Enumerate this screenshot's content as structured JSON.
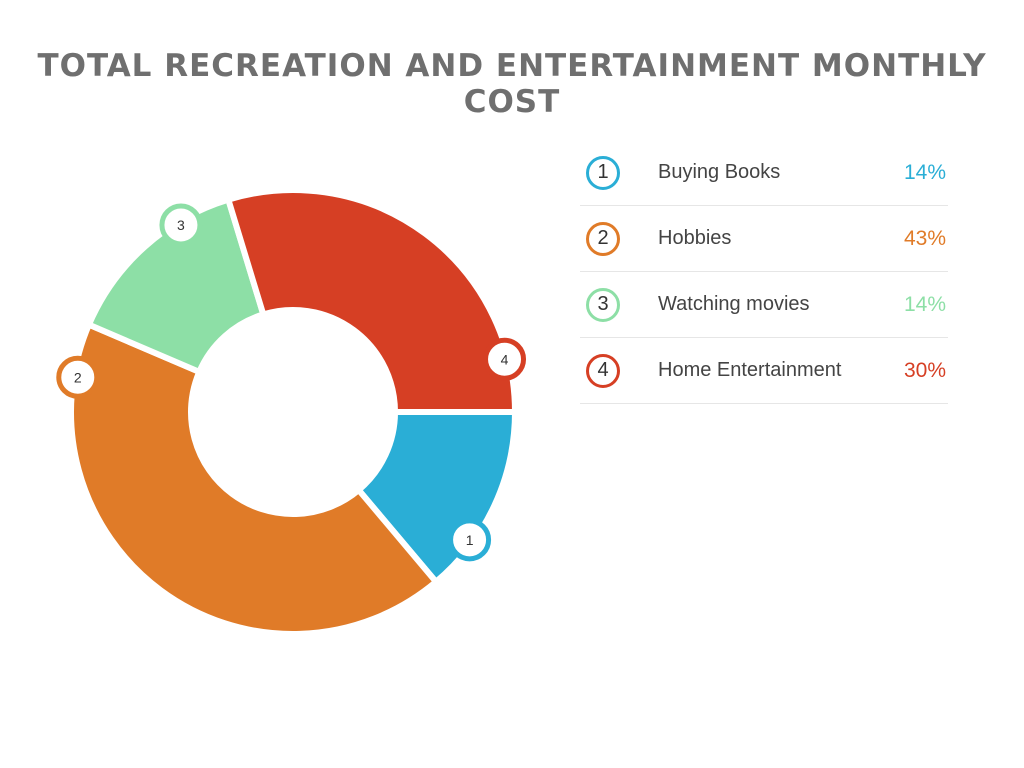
{
  "page": {
    "title": "Total Recreation and Entertainment Monthly Cost"
  },
  "chart_data": {
    "type": "pie",
    "variant": "donut",
    "title": "Total Recreation and Entertainment Monthly Cost",
    "categories": [
      "Buying Books",
      "Hobbies",
      "Watching movies",
      "Home Entertainment"
    ],
    "markers": [
      "1",
      "2",
      "3",
      "4"
    ],
    "values": [
      14,
      43,
      14,
      30
    ],
    "value_labels": [
      "14%",
      "43%",
      "14%",
      "30%"
    ],
    "colors": [
      "#2aaed6",
      "#e07b28",
      "#8ddfa6",
      "#d63f24"
    ],
    "legend_placement": "right"
  },
  "legend": {
    "items": [
      {
        "number": "1",
        "label": "Buying Books",
        "value": "14%",
        "color": "#2aaed6"
      },
      {
        "number": "2",
        "label": "Hobbies",
        "value": "43%",
        "color": "#e07b28"
      },
      {
        "number": "3",
        "label": "Watching movies",
        "value": "14%",
        "color": "#8ddfa6"
      },
      {
        "number": "4",
        "label": "Home Entertainment",
        "value": "30%",
        "color": "#d63f24"
      }
    ]
  }
}
